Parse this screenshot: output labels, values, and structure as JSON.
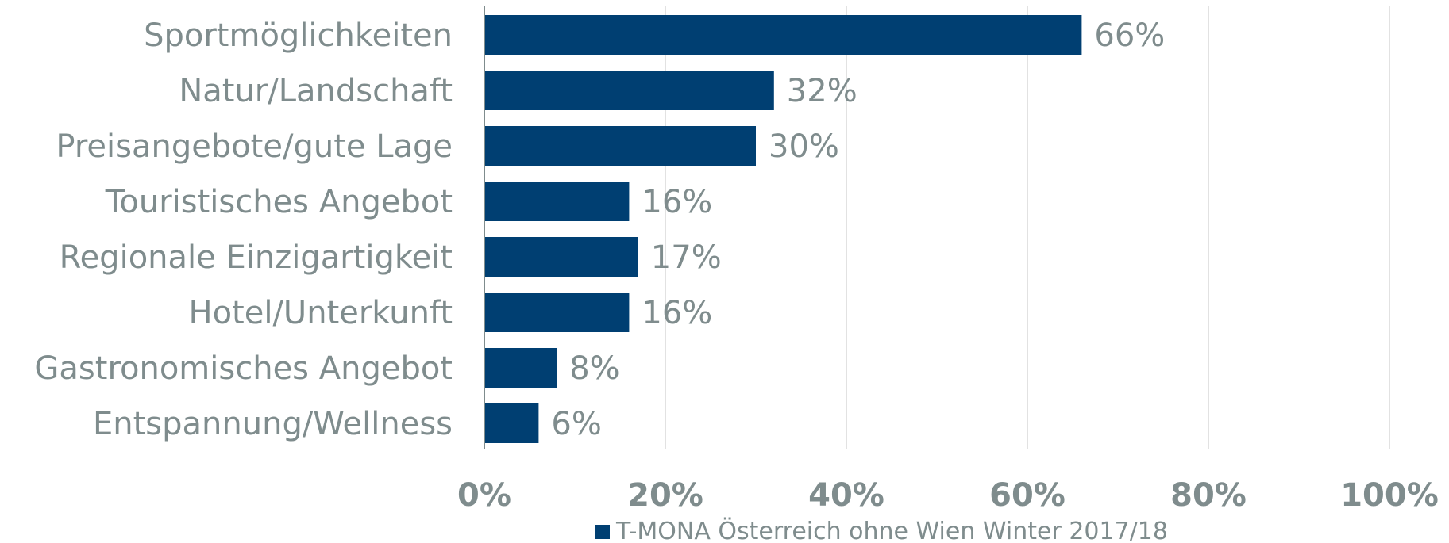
{
  "chart_data": {
    "type": "bar",
    "orientation": "horizontal",
    "categories": [
      "Sportmöglichkeiten",
      "Natur/Landschaft",
      "Preisangebote/gute Lage",
      "Touristisches Angebot",
      "Regionale Einzigartigkeit",
      "Hotel/Unterkunft",
      "Gastronomisches Angebot",
      "Entspannung/Wellness"
    ],
    "series": [
      {
        "name": "T-MONA Österreich ohne Wien Winter 2017/18",
        "values": [
          66,
          32,
          30,
          16,
          17,
          16,
          8,
          6
        ],
        "labels": [
          "66%",
          "32%",
          "30%",
          "16%",
          "17%",
          "16%",
          "8%",
          "6%"
        ],
        "color": "#003f72"
      }
    ],
    "xlim": [
      0,
      100
    ],
    "x_ticks": [
      0,
      20,
      40,
      60,
      80,
      100
    ],
    "x_tick_labels": [
      "0%",
      "20%",
      "40%",
      "60%",
      "80%",
      "100%"
    ],
    "grid": "vertical",
    "legend_position": "bottom",
    "gridline_color": "#d9d9d9",
    "axis_color": "#7f8c8d",
    "text_color": "#7f8c8d"
  }
}
